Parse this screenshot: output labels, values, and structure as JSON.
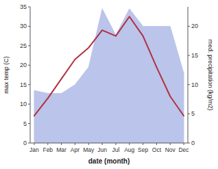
{
  "chart_data": {
    "type": "line",
    "x_label": "date (month)",
    "y_label": "max temp (C)",
    "y2_label": "med. precipitation (kg/m2)",
    "categories": [
      "Jan",
      "Feb",
      "Mar",
      "Apr",
      "May",
      "Jun",
      "Jul",
      "Aug",
      "Sep",
      "Oct",
      "Nov",
      "Dec"
    ],
    "series": [
      {
        "type": "area",
        "axis": "y2",
        "color": "#bbc4ea",
        "values": [
          9.0,
          8.5,
          8.5,
          10.0,
          13.0,
          23.0,
          18.5,
          23.0,
          20.0,
          20.0,
          20.0,
          12.0
        ]
      },
      {
        "type": "line",
        "color": "#b03040",
        "values": [
          7.0,
          11.5,
          16.5,
          21.5,
          24.5,
          29.0,
          27.5,
          32.5,
          27.5,
          19.5,
          12.0,
          7.0
        ]
      }
    ],
    "ylim": [
      0,
      35
    ],
    "yticks": [
      0,
      5,
      10,
      15,
      20,
      25,
      30,
      35
    ],
    "y2lim": [
      0,
      23.33
    ],
    "y2ticks": [
      0,
      5,
      10,
      15,
      20
    ],
    "grid": false
  }
}
